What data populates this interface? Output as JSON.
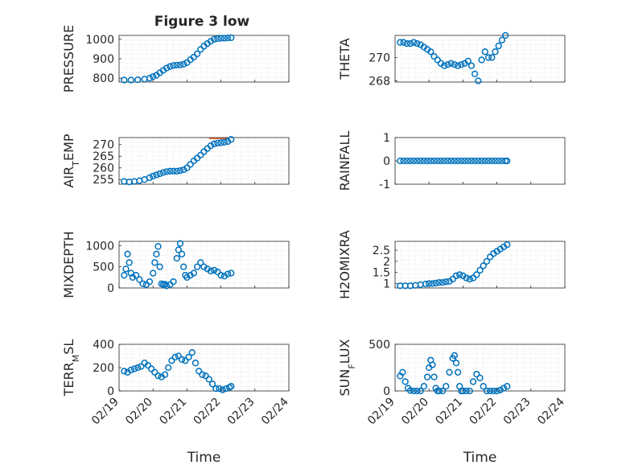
{
  "figure": {
    "title": "Figure 3 low"
  },
  "style": {
    "marker_color": "#0072BD",
    "line_color": "#D95319",
    "grid_color": "#d9d9d9"
  },
  "chart_data": [
    {
      "id": "pressure",
      "type": "scatter",
      "title": "Figure 3 low",
      "xlabel": "",
      "ylabel": "PRESSURE",
      "xlim": [
        "02/19",
        "02/24"
      ],
      "ylim": [
        780,
        1020
      ],
      "yticks": [
        800,
        900,
        1000
      ],
      "xticks": [],
      "grid": true,
      "series": [
        {
          "x": [
            0.15,
            0.35,
            0.55,
            0.75,
            0.9,
            1.0,
            1.1,
            1.2,
            1.3,
            1.4,
            1.5,
            1.6,
            1.7,
            1.8,
            1.9,
            2.0,
            2.1,
            2.2,
            2.3,
            2.4,
            2.5,
            2.6,
            2.7,
            2.8,
            2.9,
            3.0,
            3.1,
            3.2,
            3.3
          ],
          "y": [
            790,
            790,
            792,
            795,
            800,
            808,
            815,
            828,
            840,
            852,
            860,
            865,
            867,
            868,
            872,
            880,
            895,
            908,
            925,
            948,
            965,
            978,
            990,
            1000,
            1003,
            1005,
            1006,
            1007,
            1008
          ]
        }
      ],
      "line": null
    },
    {
      "id": "theta",
      "type": "scatter",
      "title": "",
      "xlabel": "",
      "ylabel": "THETA",
      "xlim": [
        "02/19",
        "02/24"
      ],
      "ylim": [
        267.9,
        271.9
      ],
      "yticks": [
        268,
        270
      ],
      "xticks": [],
      "grid": true,
      "series": [
        {
          "x": [
            0.15,
            0.25,
            0.35,
            0.45,
            0.55,
            0.65,
            0.75,
            0.85,
            0.95,
            1.05,
            1.15,
            1.25,
            1.35,
            1.45,
            1.55,
            1.65,
            1.75,
            1.85,
            1.95,
            2.05,
            2.15,
            2.25,
            2.35,
            2.45,
            2.55,
            2.65,
            2.75,
            2.85,
            2.95,
            3.05,
            3.15,
            3.25
          ],
          "y": [
            271.3,
            271.3,
            271.2,
            271.2,
            271.3,
            271.2,
            271.1,
            270.9,
            270.7,
            270.5,
            270.1,
            269.8,
            269.5,
            269.3,
            269.4,
            269.5,
            269.4,
            269.3,
            269.4,
            269.5,
            269.7,
            269.3,
            268.6,
            268.0,
            269.8,
            270.5,
            270.0,
            270.0,
            270.5,
            271.0,
            271.5,
            271.9
          ]
        }
      ],
      "line": null
    },
    {
      "id": "air_temp",
      "type": "scatter",
      "title": "",
      "xlabel": "",
      "ylabel": "AIR_TEMP",
      "xlim": [
        "02/19",
        "02/24"
      ],
      "ylim": [
        253,
        273
      ],
      "yticks": [
        255,
        260,
        265,
        270
      ],
      "xticks": [],
      "grid": true,
      "series": [
        {
          "x": [
            0.15,
            0.3,
            0.45,
            0.6,
            0.75,
            0.9,
            1.0,
            1.1,
            1.2,
            1.3,
            1.4,
            1.5,
            1.6,
            1.7,
            1.8,
            1.9,
            2.0,
            2.1,
            2.2,
            2.3,
            2.4,
            2.5,
            2.6,
            2.7,
            2.8,
            2.9,
            3.0,
            3.1,
            3.2,
            3.3
          ],
          "y": [
            254.2,
            254.0,
            254.2,
            254.5,
            255.0,
            255.8,
            256.5,
            257.0,
            257.5,
            258.0,
            258.4,
            258.6,
            258.6,
            258.6,
            258.8,
            259.2,
            260.0,
            261.5,
            263.0,
            264.2,
            265.5,
            267.0,
            268.3,
            269.5,
            270.3,
            270.6,
            270.8,
            271.0,
            271.3,
            272.2
          ]
        }
      ],
      "line": {
        "name": "",
        "x": [
          2.65,
          3.2
        ],
        "y": [
          272.6,
          272.6
        ]
      }
    },
    {
      "id": "rainfall",
      "type": "scatter",
      "title": "",
      "xlabel": "",
      "ylabel": "RAINFALL",
      "xlim": [
        "02/19",
        "02/24"
      ],
      "ylim": [
        -1,
        1
      ],
      "yticks": [
        -1,
        0,
        1
      ],
      "xticks": [],
      "grid": false,
      "series": [
        {
          "x": [
            0.15,
            0.25,
            0.35,
            0.45,
            0.55,
            0.65,
            0.75,
            0.85,
            0.95,
            1.05,
            1.15,
            1.25,
            1.35,
            1.45,
            1.55,
            1.65,
            1.75,
            1.85,
            1.95,
            2.05,
            2.15,
            2.25,
            2.35,
            2.45,
            2.55,
            2.65,
            2.75,
            2.85,
            2.95,
            3.05,
            3.15,
            3.25,
            3.3
          ],
          "y": [
            0,
            0,
            0,
            0,
            0,
            0,
            0,
            0,
            0,
            0,
            0,
            0,
            0,
            0,
            0,
            0,
            0,
            0,
            0,
            0,
            0,
            0,
            0,
            0,
            0,
            0,
            0,
            0,
            0,
            0,
            0,
            0,
            0
          ]
        }
      ],
      "line": null
    },
    {
      "id": "mixdepth",
      "type": "scatter",
      "title": "",
      "xlabel": "",
      "ylabel": "MIXDEPTH",
      "xlim": [
        "02/19",
        "02/24"
      ],
      "ylim": [
        0,
        1100
      ],
      "yticks": [
        0,
        500,
        1000
      ],
      "xticks": [],
      "grid": true,
      "series": [
        {
          "x": [
            0.15,
            0.2,
            0.25,
            0.3,
            0.35,
            0.4,
            0.5,
            0.6,
            0.7,
            0.8,
            0.9,
            1.0,
            1.05,
            1.1,
            1.15,
            1.2,
            1.25,
            1.3,
            1.35,
            1.4,
            1.5,
            1.6,
            1.7,
            1.75,
            1.8,
            1.85,
            1.9,
            1.95,
            2.0,
            2.1,
            2.2,
            2.3,
            2.4,
            2.5,
            2.6,
            2.7,
            2.8,
            2.9,
            3.0,
            3.1,
            3.2,
            3.3
          ],
          "y": [
            300,
            450,
            800,
            600,
            350,
            250,
            300,
            200,
            100,
            80,
            150,
            350,
            600,
            800,
            980,
            500,
            100,
            80,
            90,
            50,
            80,
            150,
            700,
            900,
            1050,
            800,
            500,
            300,
            250,
            300,
            350,
            500,
            600,
            500,
            450,
            400,
            420,
            380,
            300,
            280,
            330,
            350
          ]
        }
      ],
      "line": null
    },
    {
      "id": "h2omixra",
      "type": "scatter",
      "title": "",
      "xlabel": "",
      "ylabel": "H2OMIXRA",
      "xlim": [
        "02/19",
        "02/24"
      ],
      "ylim": [
        0.8,
        2.9
      ],
      "yticks": [
        1,
        1.5,
        2,
        2.5
      ],
      "xticks": [],
      "grid": true,
      "series": [
        {
          "x": [
            0.15,
            0.3,
            0.45,
            0.6,
            0.75,
            0.9,
            1.0,
            1.1,
            1.2,
            1.3,
            1.4,
            1.5,
            1.6,
            1.7,
            1.8,
            1.9,
            2.0,
            2.1,
            2.2,
            2.3,
            2.4,
            2.5,
            2.6,
            2.7,
            2.8,
            2.9,
            3.0,
            3.1,
            3.2,
            3.3
          ],
          "y": [
            0.9,
            0.9,
            0.9,
            0.92,
            0.95,
            0.98,
            1.0,
            1.0,
            1.02,
            1.05,
            1.05,
            1.08,
            1.1,
            1.2,
            1.35,
            1.4,
            1.35,
            1.25,
            1.2,
            1.25,
            1.4,
            1.6,
            1.8,
            2.0,
            2.2,
            2.35,
            2.45,
            2.55,
            2.65,
            2.75
          ]
        }
      ],
      "line": null
    },
    {
      "id": "terr_msl",
      "type": "scatter",
      "title": "",
      "xlabel": "Time",
      "ylabel": "TERR_MSL",
      "xlim": [
        "02/19",
        "02/24"
      ],
      "ylim": [
        0,
        400
      ],
      "yticks": [
        0,
        200,
        400
      ],
      "xticks": [
        "02/19",
        "02/20",
        "02/21",
        "02/22",
        "02/23",
        "02/24"
      ],
      "grid": true,
      "series": [
        {
          "x": [
            0.15,
            0.25,
            0.35,
            0.45,
            0.55,
            0.65,
            0.75,
            0.85,
            0.95,
            1.05,
            1.15,
            1.25,
            1.35,
            1.45,
            1.55,
            1.65,
            1.75,
            1.85,
            1.95,
            2.05,
            2.15,
            2.25,
            2.35,
            2.45,
            2.55,
            2.65,
            2.75,
            2.85,
            2.95,
            3.05,
            3.15,
            3.25,
            3.3
          ],
          "y": [
            170,
            160,
            180,
            190,
            200,
            210,
            240,
            220,
            190,
            160,
            130,
            120,
            140,
            200,
            260,
            290,
            300,
            270,
            260,
            290,
            330,
            240,
            170,
            140,
            130,
            100,
            60,
            20,
            20,
            10,
            20,
            30,
            40
          ]
        }
      ],
      "line": null
    },
    {
      "id": "sun_flux",
      "type": "scatter",
      "title": "",
      "xlabel": "Time",
      "ylabel": "SUN_FLUX",
      "xlim": [
        "02/19",
        "02/24"
      ],
      "ylim": [
        0,
        500
      ],
      "yticks": [
        0,
        500
      ],
      "xticks": [
        "02/19",
        "02/20",
        "02/21",
        "02/22",
        "02/23",
        "02/24"
      ],
      "grid": true,
      "series": [
        {
          "x": [
            0.15,
            0.22,
            0.3,
            0.38,
            0.45,
            0.55,
            0.65,
            0.75,
            0.85,
            0.95,
            1.0,
            1.05,
            1.1,
            1.15,
            1.2,
            1.25,
            1.3,
            1.4,
            1.5,
            1.6,
            1.7,
            1.75,
            1.8,
            1.85,
            1.9,
            1.95,
            2.0,
            2.1,
            2.2,
            2.3,
            2.4,
            2.5,
            2.6,
            2.7,
            2.8,
            2.9,
            3.0,
            3.1,
            3.2,
            3.3
          ],
          "y": [
            160,
            200,
            100,
            30,
            5,
            0,
            0,
            0,
            50,
            150,
            250,
            330,
            280,
            150,
            30,
            0,
            0,
            0,
            50,
            200,
            350,
            380,
            300,
            200,
            50,
            0,
            0,
            0,
            0,
            100,
            180,
            140,
            50,
            0,
            0,
            0,
            0,
            10,
            30,
            50
          ]
        }
      ],
      "line": null
    }
  ]
}
